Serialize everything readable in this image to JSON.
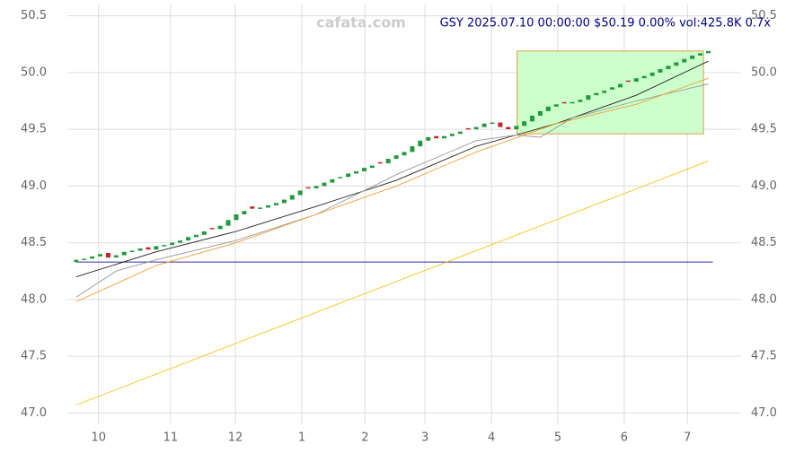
{
  "chart_data": {
    "type": "candlestick",
    "title": "GSY 2025.07.10 00:00:00 $50.19 0.00% vol:425.8K 0.7x",
    "watermark": "cafata.com",
    "xlim": [
      -1.1,
      83.1
    ],
    "ylim": [
      46.9,
      50.6
    ],
    "xticks": [
      {
        "value": 2.8,
        "label": "10"
      },
      {
        "value": 11.8,
        "label": "11"
      },
      {
        "value": 19.9,
        "label": "12"
      },
      {
        "value": 28.2,
        "label": "1"
      },
      {
        "value": 36.1,
        "label": "2"
      },
      {
        "value": 43.6,
        "label": "3"
      },
      {
        "value": 51.9,
        "label": "4"
      },
      {
        "value": 60.2,
        "label": "5"
      },
      {
        "value": 68.5,
        "label": "6"
      },
      {
        "value": 76.4,
        "label": "7"
      }
    ],
    "yticks": [
      {
        "value": 47,
        "label": "47.0"
      },
      47.5,
      {
        "value": 48,
        "label": "48.0"
      },
      48.5,
      {
        "value": 49,
        "label": "49.0"
      },
      49.5,
      {
        "value": 50,
        "label": "50.0"
      },
      50.5
    ],
    "grid": true,
    "up_color": "#1f9a3c",
    "down_color": "#c0272d",
    "candles": {
      "open": [
        48.33,
        48.35,
        48.36,
        48.38,
        48.41,
        48.37,
        48.39,
        48.42,
        48.43,
        48.46,
        48.44,
        48.47,
        48.48,
        48.5,
        48.52,
        48.55,
        48.57,
        48.63,
        48.62,
        48.65,
        48.7,
        48.75,
        48.82,
        48.8,
        48.81,
        48.83,
        48.85,
        48.88,
        48.92,
        48.99,
        48.98,
        49.0,
        49.03,
        49.07,
        49.08,
        49.11,
        49.13,
        49.16,
        49.21,
        49.2,
        49.24,
        49.27,
        49.3,
        49.35,
        49.4,
        49.44,
        49.42,
        49.44,
        49.46,
        49.51,
        49.5,
        49.52,
        49.55,
        49.56,
        49.52,
        49.5,
        49.53,
        49.57,
        49.62,
        49.66,
        49.7,
        49.74,
        49.73,
        49.74,
        49.76,
        49.8,
        49.82,
        49.85,
        49.87,
        49.93,
        49.92,
        49.95,
        49.97,
        50.0,
        50.03,
        50.06,
        50.09,
        50.12,
        50.15,
        50.17
      ],
      "close": [
        48.35,
        48.36,
        48.38,
        48.4,
        48.37,
        48.39,
        48.42,
        48.43,
        48.45,
        48.44,
        48.47,
        48.48,
        48.5,
        48.52,
        48.55,
        48.57,
        48.6,
        48.62,
        48.65,
        48.7,
        48.75,
        48.78,
        48.8,
        48.81,
        48.83,
        48.85,
        48.88,
        48.92,
        48.96,
        48.98,
        49.0,
        49.03,
        49.06,
        49.08,
        49.11,
        49.13,
        49.16,
        49.18,
        49.2,
        49.24,
        49.27,
        49.3,
        49.35,
        49.4,
        49.43,
        49.42,
        49.44,
        49.46,
        49.48,
        49.5,
        49.52,
        49.55,
        49.56,
        49.52,
        49.5,
        49.53,
        49.57,
        49.62,
        49.66,
        49.7,
        49.72,
        49.73,
        49.74,
        49.76,
        49.8,
        49.82,
        49.84,
        49.87,
        49.9,
        49.92,
        49.95,
        49.97,
        50.0,
        50.03,
        50.06,
        50.09,
        50.12,
        50.15,
        50.17,
        50.19
      ]
    },
    "series": [
      {
        "color": "#222222",
        "x": [
          0,
          10,
          20,
          30,
          40,
          50,
          55,
          60,
          70,
          79
        ],
        "values": [
          48.2,
          48.42,
          48.6,
          48.82,
          49.05,
          49.35,
          49.45,
          49.55,
          49.8,
          50.1
        ]
      },
      {
        "color": "#999999",
        "x": [
          0,
          5,
          10,
          20,
          30,
          40,
          50,
          55,
          58,
          62,
          70,
          79
        ],
        "values": [
          48.02,
          48.25,
          48.35,
          48.52,
          48.75,
          49.1,
          49.4,
          49.45,
          49.43,
          49.6,
          49.75,
          49.9
        ]
      },
      {
        "color": "#f0a030",
        "x": [
          0,
          10,
          20,
          30,
          40,
          50,
          60,
          70,
          79
        ],
        "values": [
          47.98,
          48.3,
          48.5,
          48.75,
          49.0,
          49.3,
          49.55,
          49.72,
          49.95
        ]
      },
      {
        "color": "#f5c518",
        "x": [
          0,
          79
        ],
        "values": [
          47.07,
          49.22
        ]
      }
    ],
    "support": 48.33,
    "support_color": "#3030a0",
    "box": {
      "x": [
        55.1,
        78.4
      ],
      "y": [
        49.46,
        50.19
      ],
      "fill": "#ccffcc",
      "stroke": "#e0a040"
    }
  }
}
